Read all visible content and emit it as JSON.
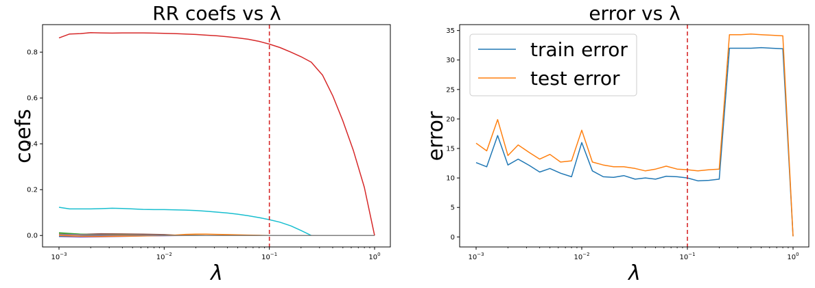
{
  "chart_data": [
    {
      "type": "line",
      "title": "RR coefs vs λ",
      "xlabel": "λ",
      "ylabel": "coefs",
      "x_scale": "log",
      "xlim": [
        0.001,
        1
      ],
      "ylim": [
        -0.05,
        0.92
      ],
      "x_ticks": [
        0.001,
        0.01,
        0.1,
        1
      ],
      "x_tick_labels": [
        {
          "base": "10",
          "exp": "−3"
        },
        {
          "base": "10",
          "exp": "−2"
        },
        {
          "base": "10",
          "exp": "−1"
        },
        {
          "base": "10",
          "exp": "0"
        }
      ],
      "y_ticks": [
        0.0,
        0.2,
        0.4,
        0.6,
        0.8
      ],
      "y_tick_labels": [
        "0.0",
        "0.2",
        "0.4",
        "0.6",
        "0.8"
      ],
      "vline": {
        "x": 0.1,
        "color": "#d62728",
        "style": "dashed"
      },
      "grid": false,
      "series": [
        {
          "color": "#d62728",
          "x": [
            0.001,
            0.00126,
            0.0016,
            0.002,
            0.0025,
            0.0032,
            0.004,
            0.005,
            0.0063,
            0.008,
            0.01,
            0.0126,
            0.016,
            0.02,
            0.025,
            0.032,
            0.04,
            0.05,
            0.063,
            0.08,
            0.1,
            0.126,
            0.16,
            0.2,
            0.25,
            0.32,
            0.4,
            0.5,
            0.63,
            0.8,
            1.0
          ],
          "y": [
            0.862,
            0.879,
            0.881,
            0.885,
            0.884,
            0.883,
            0.884,
            0.884,
            0.884,
            0.883,
            0.882,
            0.881,
            0.879,
            0.877,
            0.874,
            0.871,
            0.867,
            0.862,
            0.856,
            0.847,
            0.835,
            0.82,
            0.8,
            0.78,
            0.756,
            0.7,
            0.61,
            0.5,
            0.37,
            0.21,
            0.0
          ]
        },
        {
          "color": "#17becf",
          "x": [
            0.001,
            0.00126,
            0.0016,
            0.002,
            0.0025,
            0.0032,
            0.004,
            0.005,
            0.0063,
            0.008,
            0.01,
            0.0126,
            0.016,
            0.02,
            0.025,
            0.032,
            0.04,
            0.05,
            0.063,
            0.08,
            0.1,
            0.126,
            0.16,
            0.2,
            0.25,
            1.0
          ],
          "y": [
            0.123,
            0.116,
            0.116,
            0.116,
            0.117,
            0.119,
            0.118,
            0.116,
            0.114,
            0.113,
            0.113,
            0.112,
            0.111,
            0.109,
            0.106,
            0.102,
            0.098,
            0.093,
            0.086,
            0.078,
            0.069,
            0.058,
            0.042,
            0.022,
            0.0,
            0.0
          ]
        },
        {
          "color": "#bcbd22",
          "x": [
            0.001,
            0.0016,
            0.0025,
            0.004,
            0.0063,
            0.01,
            0.016,
            0.025,
            0.04,
            0.063,
            0.1,
            1.0
          ],
          "y": [
            0.009,
            0.006,
            0.004,
            0.003,
            0.002,
            0.001,
            0.001,
            0.0,
            0.0,
            0.0,
            0.0,
            0.0
          ]
        },
        {
          "color": "#8c564b",
          "x": [
            0.001,
            0.0016,
            0.0025,
            0.004,
            0.0063,
            0.01,
            0.0126,
            0.016,
            0.025,
            0.04,
            0.063,
            0.1,
            1.0
          ],
          "y": [
            0.002,
            0.005,
            0.008,
            0.007,
            0.006,
            0.004,
            0.002,
            0.001,
            0.0,
            0.0,
            0.0,
            0.0,
            0.0
          ]
        },
        {
          "color": "#2ca02c",
          "x": [
            0.001,
            0.0016,
            0.0025,
            0.004,
            0.0063,
            0.01,
            0.016,
            0.025,
            0.1,
            1.0
          ],
          "y": [
            0.012,
            0.006,
            0.002,
            0.0,
            -0.001,
            0.0,
            0.0,
            0.0,
            0.0,
            0.0
          ]
        },
        {
          "color": "#9467bd",
          "x": [
            0.001,
            0.0016,
            0.0025,
            0.004,
            0.0063,
            0.01,
            0.016,
            0.025,
            0.1,
            1.0
          ],
          "y": [
            -0.005,
            -0.007,
            -0.006,
            -0.004,
            -0.002,
            -0.001,
            0.0,
            0.0,
            0.0,
            0.0
          ]
        },
        {
          "color": "#1f77b4",
          "x": [
            0.001,
            0.0016,
            0.0025,
            0.004,
            0.0063,
            0.01,
            0.016,
            0.1,
            1.0
          ],
          "y": [
            -0.003,
            -0.002,
            -0.001,
            -0.001,
            0.0,
            0.0,
            0.0,
            0.0,
            0.0
          ]
        },
        {
          "color": "#ff7f0e",
          "x": [
            0.001,
            0.0016,
            0.0025,
            0.004,
            0.0063,
            0.01,
            0.0126,
            0.016,
            0.02,
            0.025,
            0.032,
            0.04,
            0.05,
            0.063,
            0.08,
            0.1,
            1.0
          ],
          "y": [
            0.0,
            -0.003,
            -0.004,
            -0.003,
            -0.002,
            0.0,
            0.002,
            0.005,
            0.006,
            0.006,
            0.005,
            0.004,
            0.003,
            0.002,
            0.001,
            0.0,
            0.0
          ]
        },
        {
          "color": "#e377c2",
          "x": [
            0.001,
            0.0016,
            0.0025,
            0.004,
            0.0063,
            0.01,
            0.1,
            1.0
          ],
          "y": [
            0.004,
            0.003,
            0.002,
            0.001,
            0.001,
            0.0,
            0.0,
            0.0
          ]
        },
        {
          "color": "#7f7f7f",
          "x": [
            0.001,
            0.0016,
            0.0025,
            0.004,
            0.0063,
            0.01,
            0.1,
            1.0
          ],
          "y": [
            0.006,
            0.004,
            0.003,
            0.002,
            0.001,
            0.0,
            0.0,
            0.0
          ]
        }
      ]
    },
    {
      "type": "line",
      "title": "error vs λ",
      "xlabel": "λ",
      "ylabel": "error",
      "x_scale": "log",
      "xlim": [
        0.001,
        1
      ],
      "ylim": [
        -1.7,
        36
      ],
      "x_ticks": [
        0.001,
        0.01,
        0.1,
        1
      ],
      "x_tick_labels": [
        {
          "base": "10",
          "exp": "−3"
        },
        {
          "base": "10",
          "exp": "−2"
        },
        {
          "base": "10",
          "exp": "−1"
        },
        {
          "base": "10",
          "exp": "0"
        }
      ],
      "y_ticks": [
        0,
        5,
        10,
        15,
        20,
        25,
        30,
        35
      ],
      "y_tick_labels": [
        "0",
        "5",
        "10",
        "15",
        "20",
        "25",
        "30",
        "35"
      ],
      "vline": {
        "x": 0.1,
        "color": "#d62728",
        "style": "dashed"
      },
      "grid": false,
      "legend": {
        "position": "top-left"
      },
      "series": [
        {
          "name": "train error",
          "color": "#1f77b4",
          "x": [
            0.001,
            0.00126,
            0.0016,
            0.002,
            0.0025,
            0.0032,
            0.004,
            0.005,
            0.0063,
            0.008,
            0.01,
            0.0126,
            0.016,
            0.02,
            0.025,
            0.032,
            0.04,
            0.05,
            0.063,
            0.08,
            0.1,
            0.126,
            0.16,
            0.2,
            0.25,
            0.32,
            0.4,
            0.5,
            0.63,
            0.8,
            1.0
          ],
          "y": [
            12.6,
            11.9,
            17.2,
            12.2,
            13.2,
            12.1,
            11.0,
            11.6,
            10.8,
            10.2,
            16.0,
            11.2,
            10.2,
            10.1,
            10.4,
            9.8,
            10.0,
            9.8,
            10.3,
            10.2,
            10.0,
            9.5,
            9.6,
            9.8,
            32.0,
            32.0,
            32.0,
            32.1,
            32.0,
            31.9,
            0.1
          ]
        },
        {
          "name": "test error",
          "color": "#ff7f0e",
          "x": [
            0.001,
            0.00126,
            0.0016,
            0.002,
            0.0025,
            0.0032,
            0.004,
            0.005,
            0.0063,
            0.008,
            0.01,
            0.0126,
            0.016,
            0.02,
            0.025,
            0.032,
            0.04,
            0.05,
            0.063,
            0.08,
            0.1,
            0.126,
            0.16,
            0.2,
            0.25,
            0.32,
            0.4,
            0.5,
            0.63,
            0.8,
            1.0
          ],
          "y": [
            15.9,
            14.6,
            19.9,
            13.8,
            15.6,
            14.3,
            13.2,
            14.0,
            12.7,
            12.9,
            18.1,
            12.7,
            12.2,
            11.9,
            11.9,
            11.6,
            11.2,
            11.5,
            12.0,
            11.5,
            11.4,
            11.2,
            11.4,
            11.5,
            34.3,
            34.3,
            34.4,
            34.3,
            34.2,
            34.1,
            0.1
          ]
        }
      ]
    }
  ]
}
